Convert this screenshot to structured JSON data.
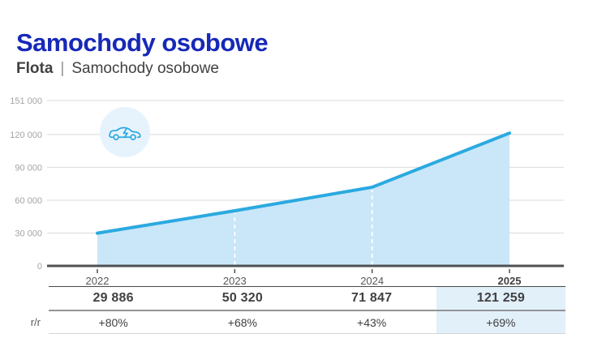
{
  "page": {
    "title": "Samochody osobowe",
    "breadcrumb": {
      "section": "Flota",
      "separator": "|",
      "page": "Samochody osobowe"
    }
  },
  "colors": {
    "title_blue": "#1629b8",
    "accent": "#2ba9e0",
    "area_fill": "#c9e7f8",
    "icon_bg": "#e7f3fc",
    "highlight": "#e2f0fa",
    "grid_line": "#d8d9da",
    "axis_line": "#4f5052",
    "text_dark": "#414042",
    "text_secondary": "#58595b",
    "text_muted": "#a2a4a7"
  },
  "chart_data": {
    "type": "area",
    "title": "Samochody osobowe",
    "categories": [
      "2022",
      "2023",
      "2024",
      "2025"
    ],
    "values": [
      29886,
      50320,
      71847,
      121259
    ],
    "ylim": [
      0,
      151000
    ],
    "yticks": [
      0,
      30000,
      60000,
      90000,
      120000,
      151000
    ],
    "ytick_labels": [
      "0",
      "30 000",
      "60 000",
      "90 000",
      "120 000",
      "151 000"
    ],
    "grid": true,
    "legend": "none",
    "highlighted_category": "2025",
    "dashed_guide_categories": [
      "2023",
      "2024"
    ]
  },
  "table": {
    "rr_label": "r/r",
    "columns": [
      {
        "year": "2022",
        "value": "29 886",
        "rr": "+80%"
      },
      {
        "year": "2023",
        "value": "50 320",
        "rr": "+68%"
      },
      {
        "year": "2024",
        "value": "71 847",
        "rr": "+43%"
      },
      {
        "year": "2025",
        "value": "121 259",
        "rr": "+69%"
      }
    ]
  },
  "icon": {
    "name": "electric-car-icon"
  }
}
